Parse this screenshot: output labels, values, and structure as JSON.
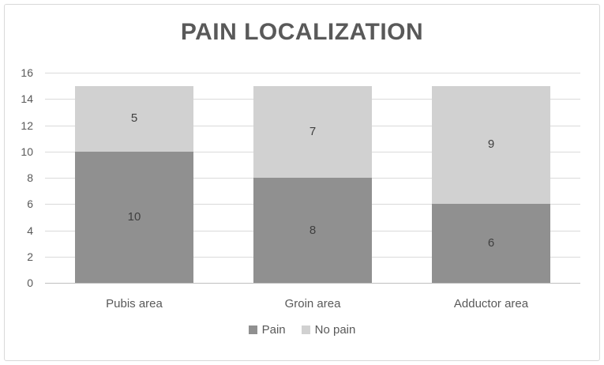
{
  "chart_data": {
    "type": "bar",
    "stacked": true,
    "title": "PAIN LOCALIZATION",
    "categories": [
      "Pubis area",
      "Groin area",
      "Adductor area"
    ],
    "series": [
      {
        "name": "Pain",
        "values": [
          10,
          8,
          6
        ],
        "color": "#909090"
      },
      {
        "name": "No pain",
        "values": [
          5,
          7,
          9
        ],
        "color": "#d1d1d1"
      }
    ],
    "xlabel": "",
    "ylabel": "",
    "ylim": [
      0,
      16
    ],
    "yticks": [
      0,
      2,
      4,
      6,
      8,
      10,
      12,
      14,
      16
    ],
    "grid": "horizontal",
    "legend_position": "bottom",
    "data_labels": true
  },
  "colors": {
    "background": "#ffffff",
    "border": "#d9d9d9",
    "gridline": "#dadada",
    "axis_line": "#c0c0c0",
    "title_text": "#595959",
    "axis_text": "#595959",
    "data_label_text": "#3f3f3f"
  }
}
